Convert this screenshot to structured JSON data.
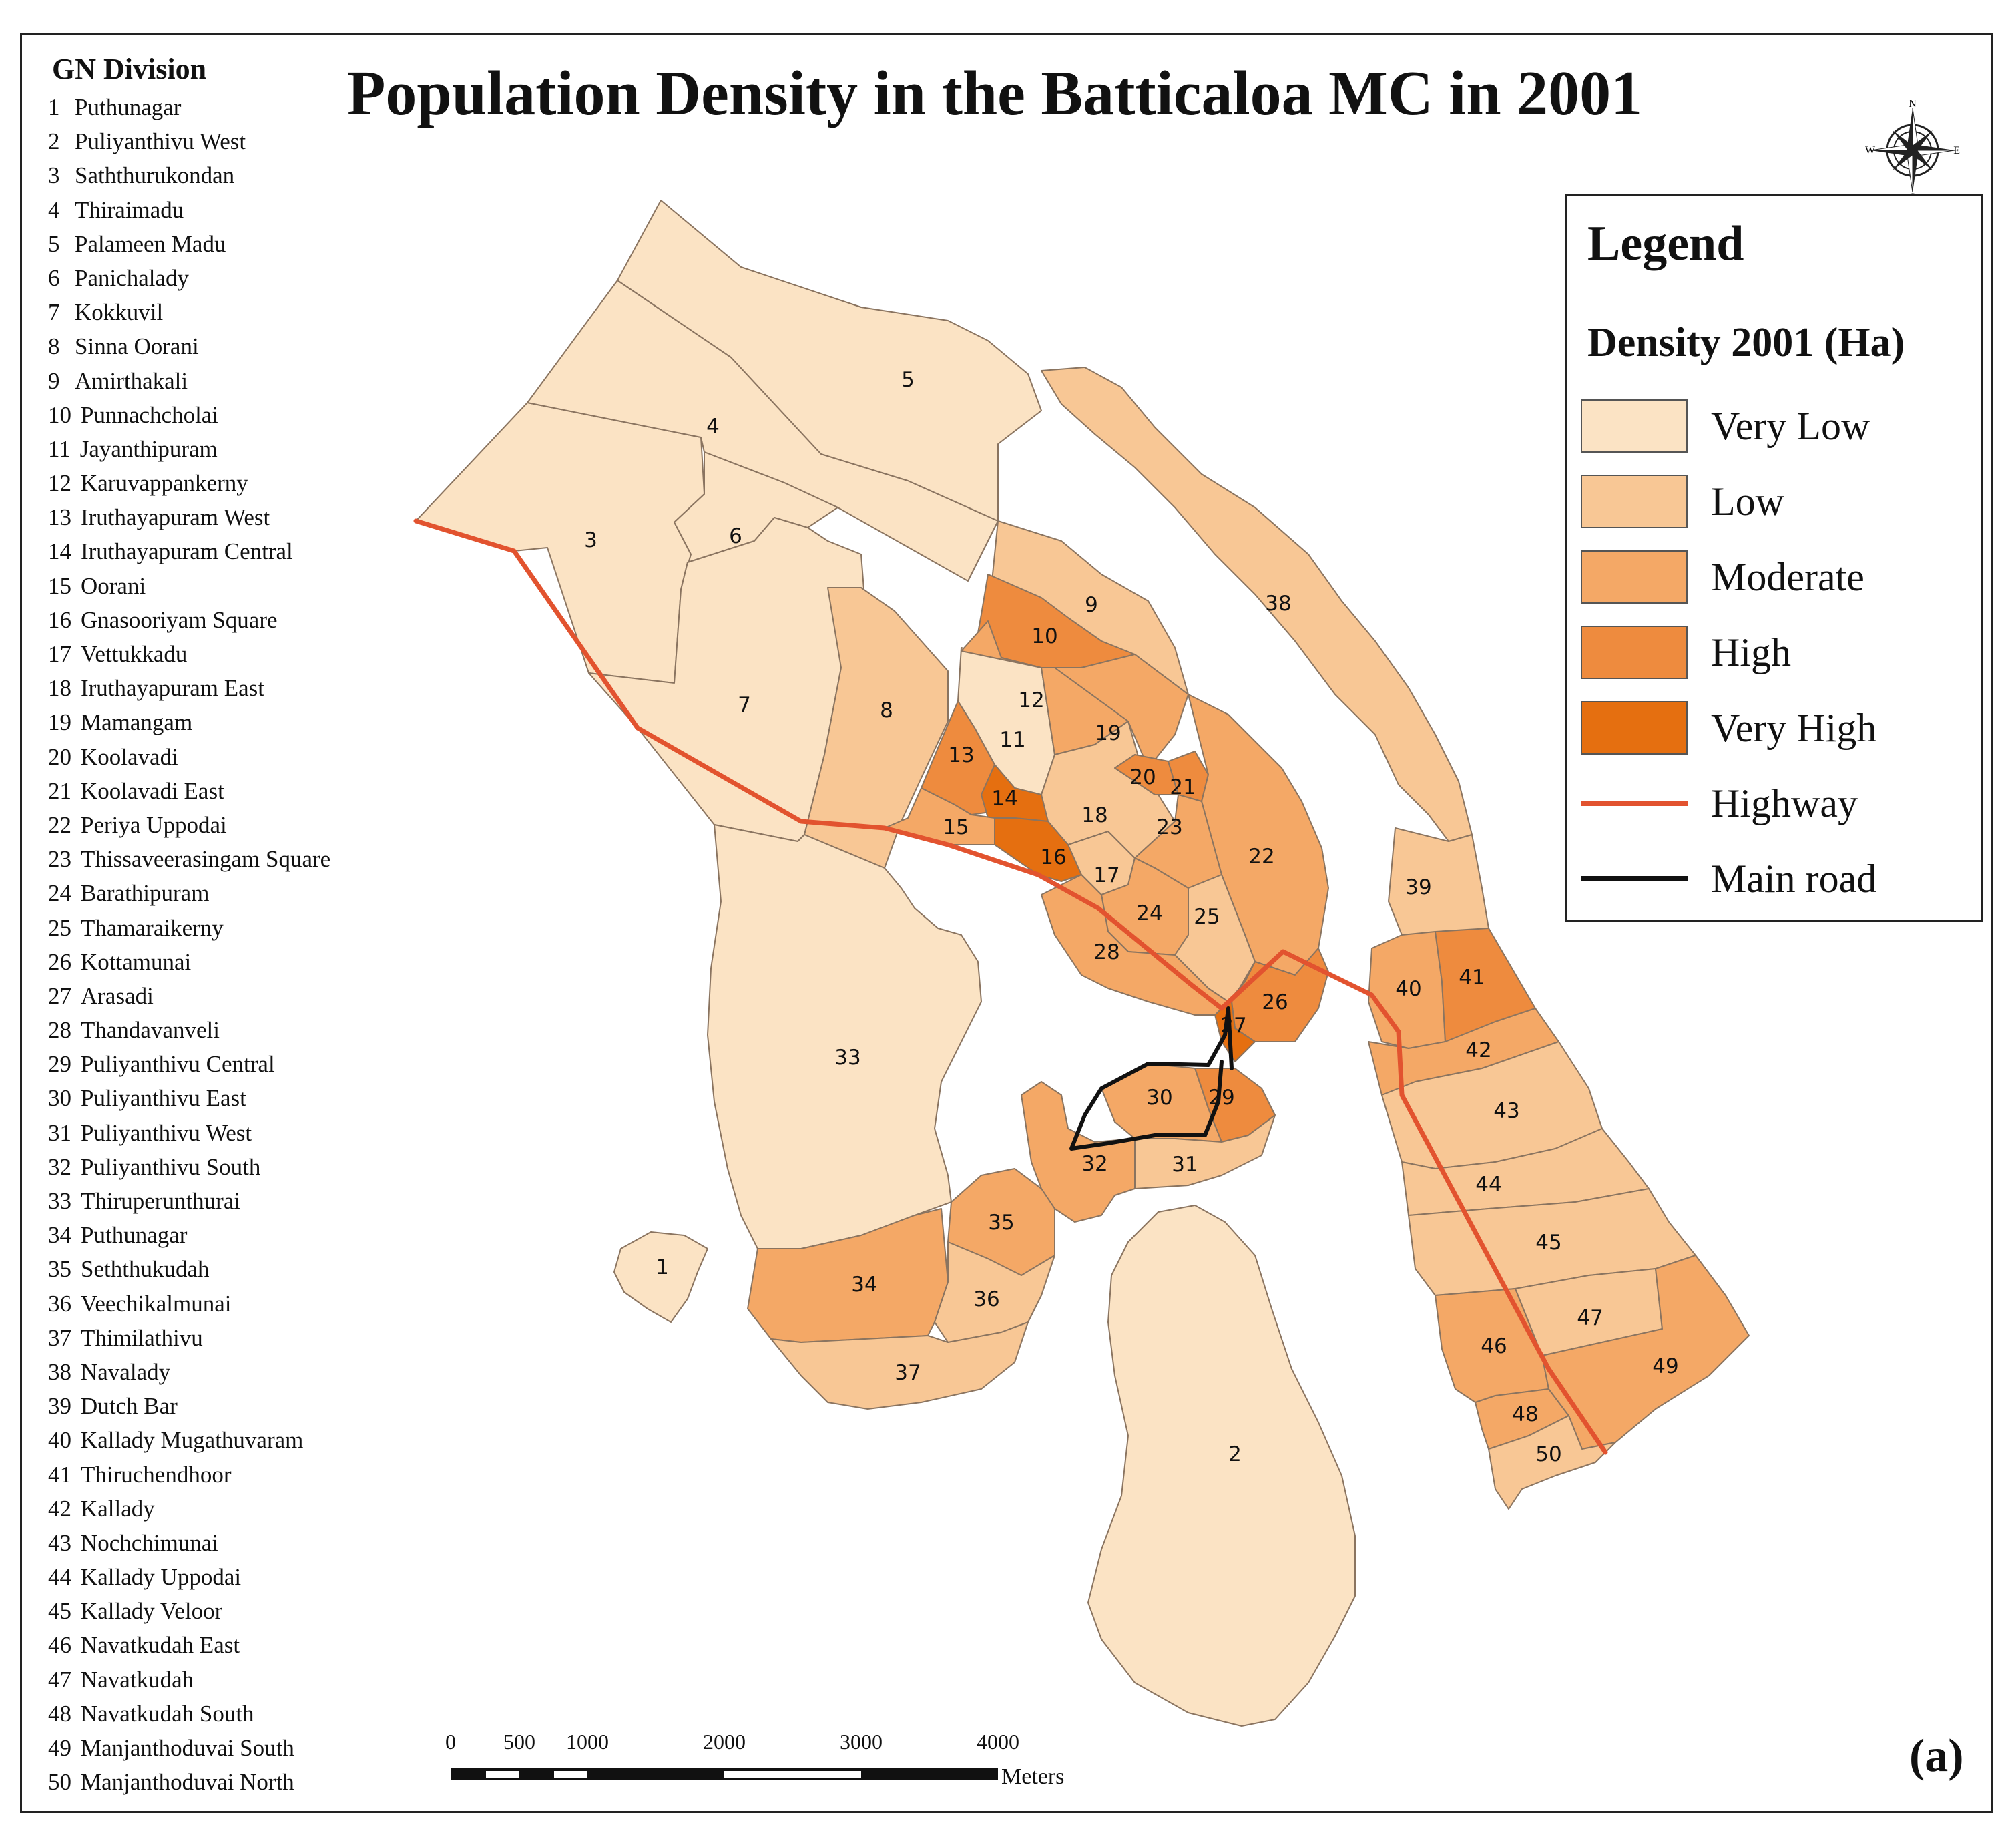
{
  "title": "Population Density in the Batticaloa MC in 2001",
  "panel_label": "(a)",
  "gn_panel": {
    "heading": "GN Division",
    "items": [
      {
        "num": "1",
        "name": "Puthunagar"
      },
      {
        "num": "2",
        "name": "Puliyanthivu West"
      },
      {
        "num": "3",
        "name": "Saththurukondan"
      },
      {
        "num": "4",
        "name": "Thiraimadu"
      },
      {
        "num": "5",
        "name": "Palameen Madu"
      },
      {
        "num": "6",
        "name": "Panichalady"
      },
      {
        "num": "7",
        "name": "Kokkuvil"
      },
      {
        "num": "8",
        "name": "Sinna Oorani"
      },
      {
        "num": "9",
        "name": "Amirthakali"
      },
      {
        "num": "10",
        "name": "Punnachcholai"
      },
      {
        "num": "11",
        "name": "Jayanthipuram"
      },
      {
        "num": "12",
        "name": "Karuvappankerny"
      },
      {
        "num": "13",
        "name": "Iruthayapuram West"
      },
      {
        "num": "14",
        "name": "Iruthayapuram Central"
      },
      {
        "num": "15",
        "name": "Oorani"
      },
      {
        "num": "16",
        "name": "Gnasooriyam Square"
      },
      {
        "num": "17",
        "name": "Vettukkadu"
      },
      {
        "num": "18",
        "name": "Iruthayapuram East"
      },
      {
        "num": "19",
        "name": "Mamangam"
      },
      {
        "num": "20",
        "name": "Koolavadi"
      },
      {
        "num": "21",
        "name": "Koolavadi East"
      },
      {
        "num": "22",
        "name": "Periya Uppodai"
      },
      {
        "num": "23",
        "name": "Thissaveerasingam Square"
      },
      {
        "num": "24",
        "name": "Barathipuram"
      },
      {
        "num": "25",
        "name": "Thamaraikerny"
      },
      {
        "num": "26",
        "name": "Kottamunai"
      },
      {
        "num": "27",
        "name": "Arasadi"
      },
      {
        "num": "28",
        "name": "Thandavanveli"
      },
      {
        "num": "29",
        "name": "Puliyanthivu Central"
      },
      {
        "num": "30",
        "name": "Puliyanthivu East"
      },
      {
        "num": "31",
        "name": "Puliyanthivu West"
      },
      {
        "num": "32",
        "name": "Puliyanthivu South"
      },
      {
        "num": "33",
        "name": "Thiruperunthurai"
      },
      {
        "num": "34",
        "name": "Puthunagar"
      },
      {
        "num": "35",
        "name": "Seththukudah"
      },
      {
        "num": "36",
        "name": "Veechikalmunai"
      },
      {
        "num": "37",
        "name": "Thimilathivu"
      },
      {
        "num": "38",
        "name": "Navalady"
      },
      {
        "num": "39",
        "name": "Dutch Bar"
      },
      {
        "num": "40",
        "name": "Kallady Mugathuvaram"
      },
      {
        "num": "41",
        "name": "Thiruchendhoor"
      },
      {
        "num": "42",
        "name": "Kallady"
      },
      {
        "num": "43",
        "name": "Nochchimunai"
      },
      {
        "num": "44",
        "name": "Kallady Uppodai"
      },
      {
        "num": "45",
        "name": "Kallady Veloor"
      },
      {
        "num": "46",
        "name": "Navatkudah East"
      },
      {
        "num": "47",
        "name": "Navatkudah"
      },
      {
        "num": "48",
        "name": "Navatkudah South"
      },
      {
        "num": "49",
        "name": "Manjanthoduvai South"
      },
      {
        "num": "50",
        "name": "Manjanthoduvai North"
      }
    ]
  },
  "legend": {
    "title": "Legend",
    "subtitle": "Density 2001 (Ha)",
    "classes": [
      {
        "label": "Very Low",
        "color": "#fbe3c4"
      },
      {
        "label": "Low",
        "color": "#f8c795"
      },
      {
        "label": "Moderate",
        "color": "#f4a866"
      },
      {
        "label": "High",
        "color": "#ee8b3e"
      },
      {
        "label": "Very High",
        "color": "#e56f10"
      }
    ],
    "lines": [
      {
        "label": "Highway",
        "color": "#e2532f"
      },
      {
        "label": "Main road",
        "color": "#111111"
      }
    ]
  },
  "compass": {
    "n": "N",
    "s": "S",
    "w": "W",
    "e": "E"
  },
  "scale_bar": {
    "ticks": [
      "0",
      "500",
      "1000",
      "2000",
      "3000",
      "4000"
    ],
    "tick_values": [
      0,
      500,
      1000,
      2000,
      3000,
      4000
    ],
    "unit": "Meters"
  },
  "map": {
    "classes": {
      "very_low": "#fbe3c4",
      "low": "#f8c795",
      "moderate": "#f4a866",
      "high": "#ee8b3e",
      "very_high": "#e56f10"
    },
    "divisions": [
      {
        "id": "1",
        "class": "very_low"
      },
      {
        "id": "2",
        "class": "very_low"
      },
      {
        "id": "3",
        "class": "very_low"
      },
      {
        "id": "4",
        "class": "very_low"
      },
      {
        "id": "5",
        "class": "very_low"
      },
      {
        "id": "6",
        "class": "very_low"
      },
      {
        "id": "7",
        "class": "very_low"
      },
      {
        "id": "8",
        "class": "low"
      },
      {
        "id": "9",
        "class": "low"
      },
      {
        "id": "10",
        "class": "high"
      },
      {
        "id": "11",
        "class": "very_low"
      },
      {
        "id": "12",
        "class": "moderate"
      },
      {
        "id": "13",
        "class": "high"
      },
      {
        "id": "14",
        "class": "very_high"
      },
      {
        "id": "15",
        "class": "moderate"
      },
      {
        "id": "16",
        "class": "very_high"
      },
      {
        "id": "17",
        "class": "low"
      },
      {
        "id": "18",
        "class": "low"
      },
      {
        "id": "19",
        "class": "moderate"
      },
      {
        "id": "20",
        "class": "high"
      },
      {
        "id": "21",
        "class": "high"
      },
      {
        "id": "22",
        "class": "moderate"
      },
      {
        "id": "23",
        "class": "moderate"
      },
      {
        "id": "24",
        "class": "moderate"
      },
      {
        "id": "25",
        "class": "low"
      },
      {
        "id": "26",
        "class": "high"
      },
      {
        "id": "27",
        "class": "very_high"
      },
      {
        "id": "28",
        "class": "moderate"
      },
      {
        "id": "29",
        "class": "high"
      },
      {
        "id": "30",
        "class": "moderate"
      },
      {
        "id": "31",
        "class": "low"
      },
      {
        "id": "32",
        "class": "moderate"
      },
      {
        "id": "33",
        "class": "very_low"
      },
      {
        "id": "34",
        "class": "moderate"
      },
      {
        "id": "35",
        "class": "moderate"
      },
      {
        "id": "36",
        "class": "low"
      },
      {
        "id": "37",
        "class": "low"
      },
      {
        "id": "38",
        "class": "low"
      },
      {
        "id": "39",
        "class": "low"
      },
      {
        "id": "40",
        "class": "moderate"
      },
      {
        "id": "41",
        "class": "high"
      },
      {
        "id": "42",
        "class": "moderate"
      },
      {
        "id": "43",
        "class": "low"
      },
      {
        "id": "44",
        "class": "low"
      },
      {
        "id": "45",
        "class": "low"
      },
      {
        "id": "46",
        "class": "moderate"
      },
      {
        "id": "47",
        "class": "low"
      },
      {
        "id": "48",
        "class": "moderate"
      },
      {
        "id": "49",
        "class": "moderate"
      },
      {
        "id": "50",
        "class": "low"
      }
    ]
  }
}
